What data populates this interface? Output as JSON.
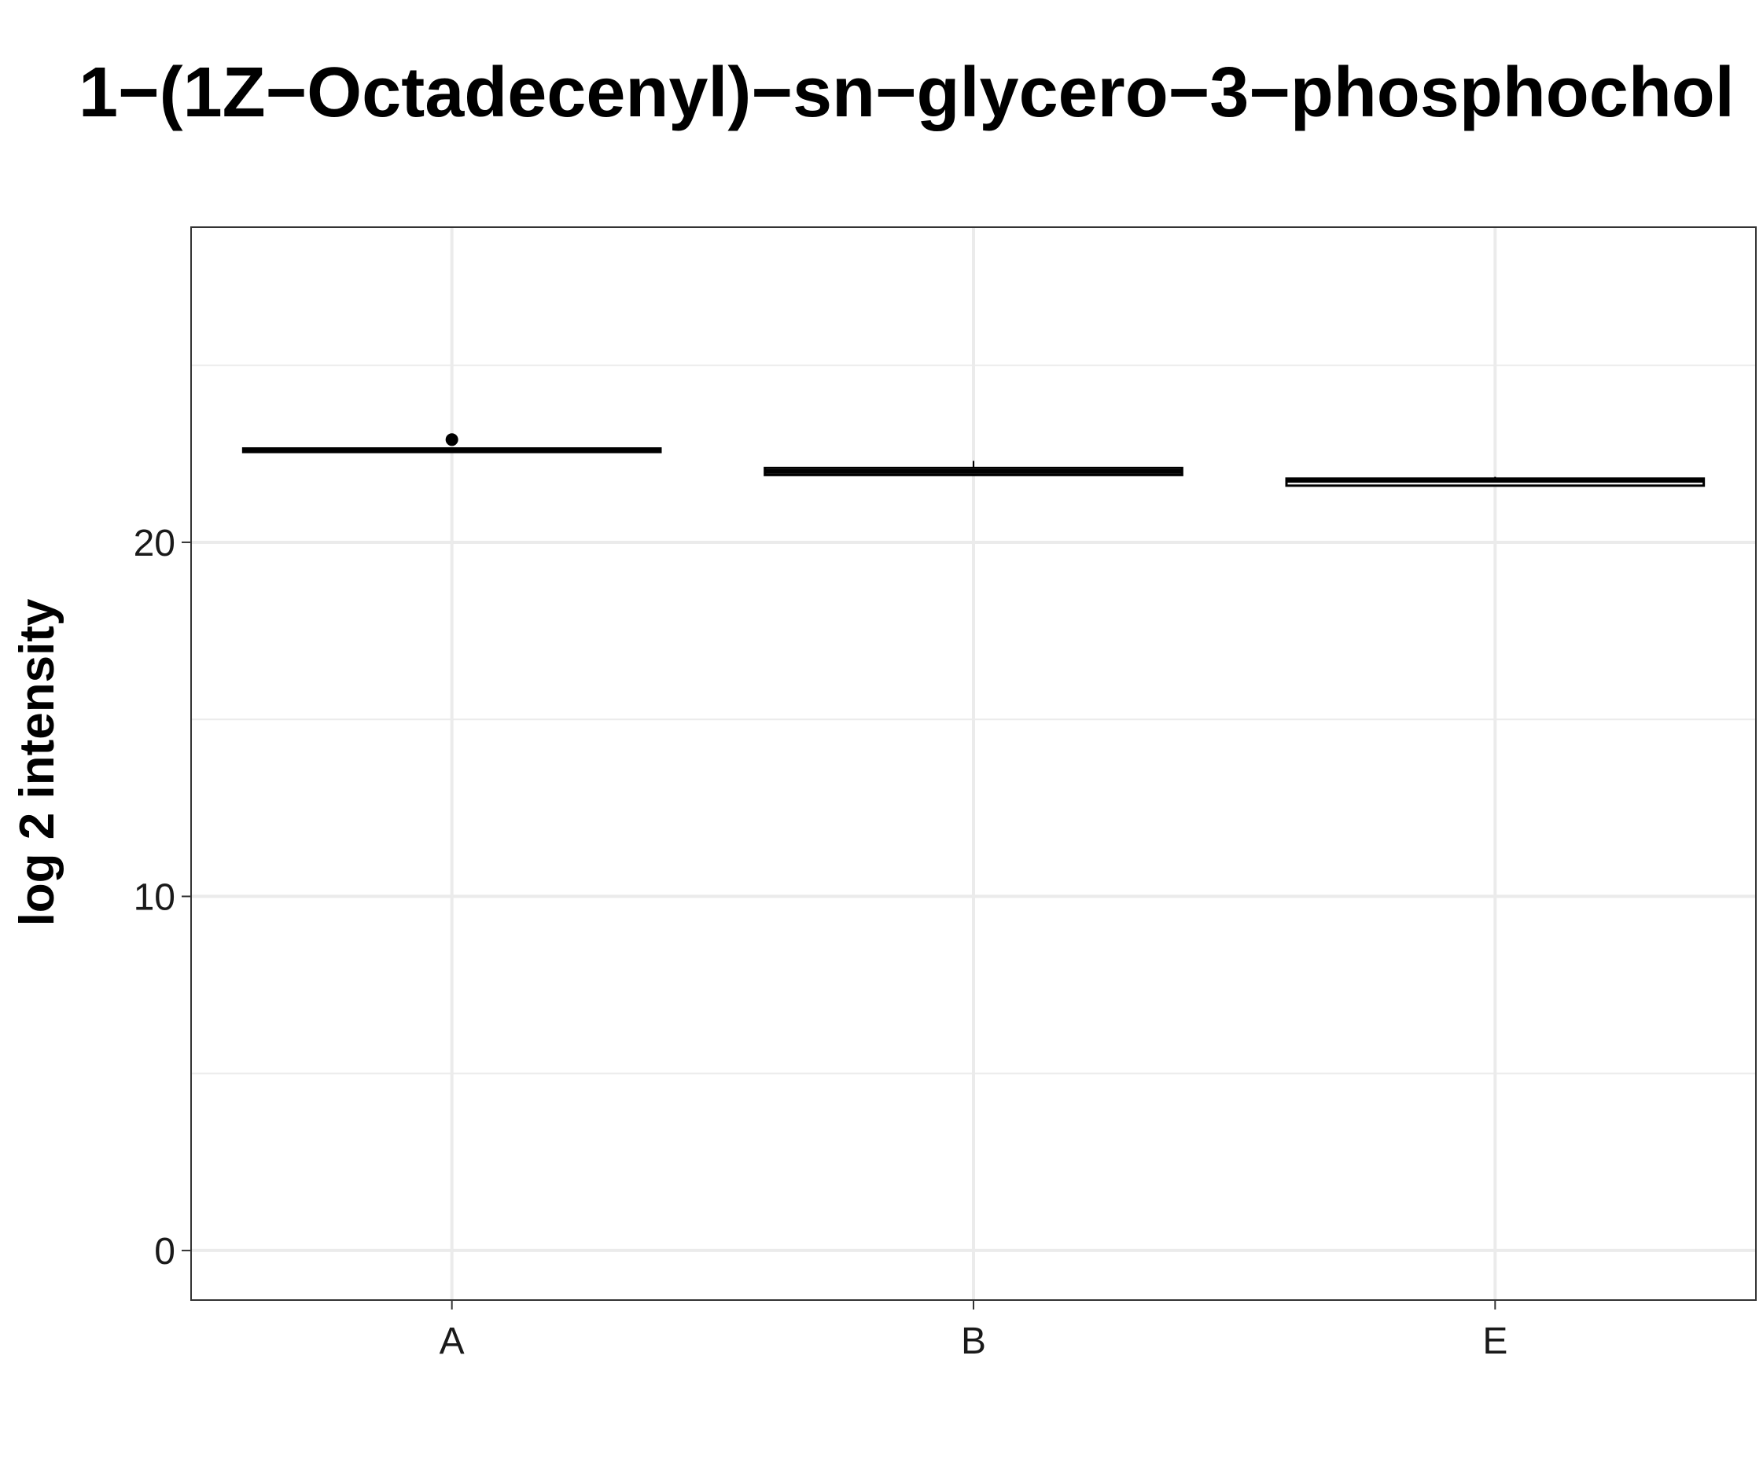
{
  "chart_data": {
    "type": "box",
    "title": "1−(1Z−Octadecenyl)−sn−glycero−3−phosphochol",
    "xlabel": "",
    "ylabel": "log 2 intensity",
    "categories": [
      "A",
      "B",
      "E"
    ],
    "ylim": [
      -1.4,
      28.9
    ],
    "y_ticks": [
      0,
      10,
      20
    ],
    "y_tick_labels": [
      "0",
      "10",
      "20"
    ],
    "grid": true,
    "legend": "none",
    "boxes": [
      {
        "category": "A",
        "whisker_low": 22.55,
        "q1": 22.55,
        "median": 22.6,
        "q3": 22.65,
        "whisker_high": 22.65,
        "outliers": [
          22.9
        ]
      },
      {
        "category": "B",
        "whisker_low": 21.9,
        "q1": 21.9,
        "median": 22.0,
        "q3": 22.1,
        "whisker_high": 22.3,
        "outliers": []
      },
      {
        "category": "E",
        "whisker_low": 21.6,
        "q1": 21.6,
        "median": 21.75,
        "q3": 21.8,
        "whisker_high": 21.85,
        "outliers": []
      }
    ],
    "colors": {
      "box_line": "#000000",
      "grid": "#ebebeb",
      "panel_border": "#333333"
    }
  }
}
